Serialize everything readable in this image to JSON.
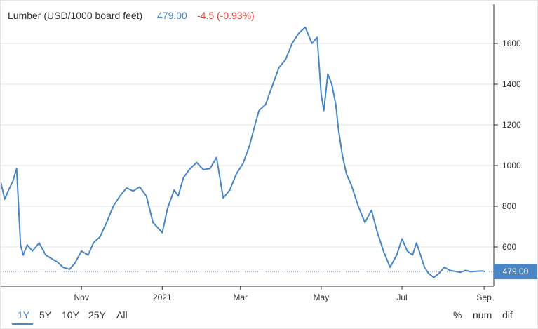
{
  "header": {
    "title": "Lumber (USD/1000 board feet)",
    "price": "479.00",
    "change": "-4.5 (-0.93%)"
  },
  "range_buttons": [
    "1Y",
    "5Y",
    "10Y",
    "25Y",
    "All"
  ],
  "active_range": "1Y",
  "display_buttons": [
    "%",
    "num",
    "dif"
  ],
  "colors": {
    "line": "#4a86c5",
    "change_negative": "#e0443a",
    "badge": "#4a86c5"
  },
  "chart_data": {
    "type": "line",
    "title": "Lumber (USD/1000 board feet)",
    "xlabel": "",
    "ylabel": "",
    "ylim": [
      400,
      1750
    ],
    "xlim": [
      "2020-09-01",
      "2021-09-02"
    ],
    "y_ticks": [
      600,
      800,
      1000,
      1200,
      1400,
      1600
    ],
    "x_ticks": [
      {
        "label": "Nov",
        "date": "2020-11-01"
      },
      {
        "label": "2021",
        "date": "2021-01-01"
      },
      {
        "label": "Mar",
        "date": "2021-03-01"
      },
      {
        "label": "May",
        "date": "2021-05-01"
      },
      {
        "label": "Jul",
        "date": "2021-07-01"
      },
      {
        "label": "Sep",
        "date": "2021-09-01"
      }
    ],
    "last_value_label": "479.00",
    "last_value": 479,
    "grid": "horizontal",
    "series": [
      {
        "x": [
          "2020-09-01",
          "2020-09-04",
          "2020-09-07",
          "2020-09-10",
          "2020-09-13",
          "2020-09-16",
          "2020-09-18",
          "2020-09-21",
          "2020-09-25",
          "2020-09-30",
          "2020-10-05",
          "2020-10-10",
          "2020-10-14",
          "2020-10-18",
          "2020-10-23",
          "2020-10-27",
          "2020-11-01",
          "2020-11-06",
          "2020-11-10",
          "2020-11-15",
          "2020-11-20",
          "2020-11-25",
          "2020-11-30",
          "2020-12-05",
          "2020-12-10",
          "2020-12-15",
          "2020-12-20",
          "2020-12-25",
          "2021-01-01",
          "2021-01-05",
          "2021-01-10",
          "2021-01-13",
          "2021-01-17",
          "2021-01-22",
          "2021-01-27",
          "2021-02-01",
          "2021-02-06",
          "2021-02-11",
          "2021-02-16",
          "2021-02-21",
          "2021-02-26",
          "2021-03-03",
          "2021-03-08",
          "2021-03-12",
          "2021-03-15",
          "2021-03-20",
          "2021-03-25",
          "2021-03-30",
          "2021-04-04",
          "2021-04-09",
          "2021-04-14",
          "2021-04-19",
          "2021-04-24",
          "2021-04-28",
          "2021-05-01",
          "2021-05-03",
          "2021-05-06",
          "2021-05-09",
          "2021-05-12",
          "2021-05-14",
          "2021-05-17",
          "2021-05-20",
          "2021-05-24",
          "2021-05-29",
          "2021-06-03",
          "2021-06-08",
          "2021-06-12",
          "2021-06-17",
          "2021-06-22",
          "2021-06-27",
          "2021-07-01",
          "2021-07-05",
          "2021-07-09",
          "2021-07-12",
          "2021-07-15",
          "2021-07-18",
          "2021-07-21",
          "2021-07-25",
          "2021-07-29",
          "2021-08-02",
          "2021-08-06",
          "2021-08-10",
          "2021-08-14",
          "2021-08-18",
          "2021-08-22",
          "2021-08-26",
          "2021-08-30",
          "2021-09-02"
        ],
        "values": [
          920,
          835,
          880,
          920,
          985,
          610,
          560,
          610,
          580,
          620,
          560,
          540,
          525,
          500,
          490,
          520,
          580,
          560,
          620,
          650,
          720,
          800,
          850,
          890,
          875,
          895,
          850,
          720,
          670,
          790,
          880,
          850,
          940,
          985,
          1015,
          980,
          985,
          1040,
          840,
          880,
          960,
          1010,
          1100,
          1200,
          1270,
          1300,
          1390,
          1480,
          1520,
          1600,
          1650,
          1680,
          1600,
          1630,
          1350,
          1270,
          1450,
          1400,
          1300,
          1180,
          1050,
          960,
          900,
          800,
          720,
          780,
          680,
          580,
          500,
          560,
          640,
          580,
          560,
          620,
          560,
          500,
          470,
          450,
          470,
          500,
          485,
          480,
          475,
          485,
          478,
          480,
          482,
          479
        ]
      }
    ]
  }
}
